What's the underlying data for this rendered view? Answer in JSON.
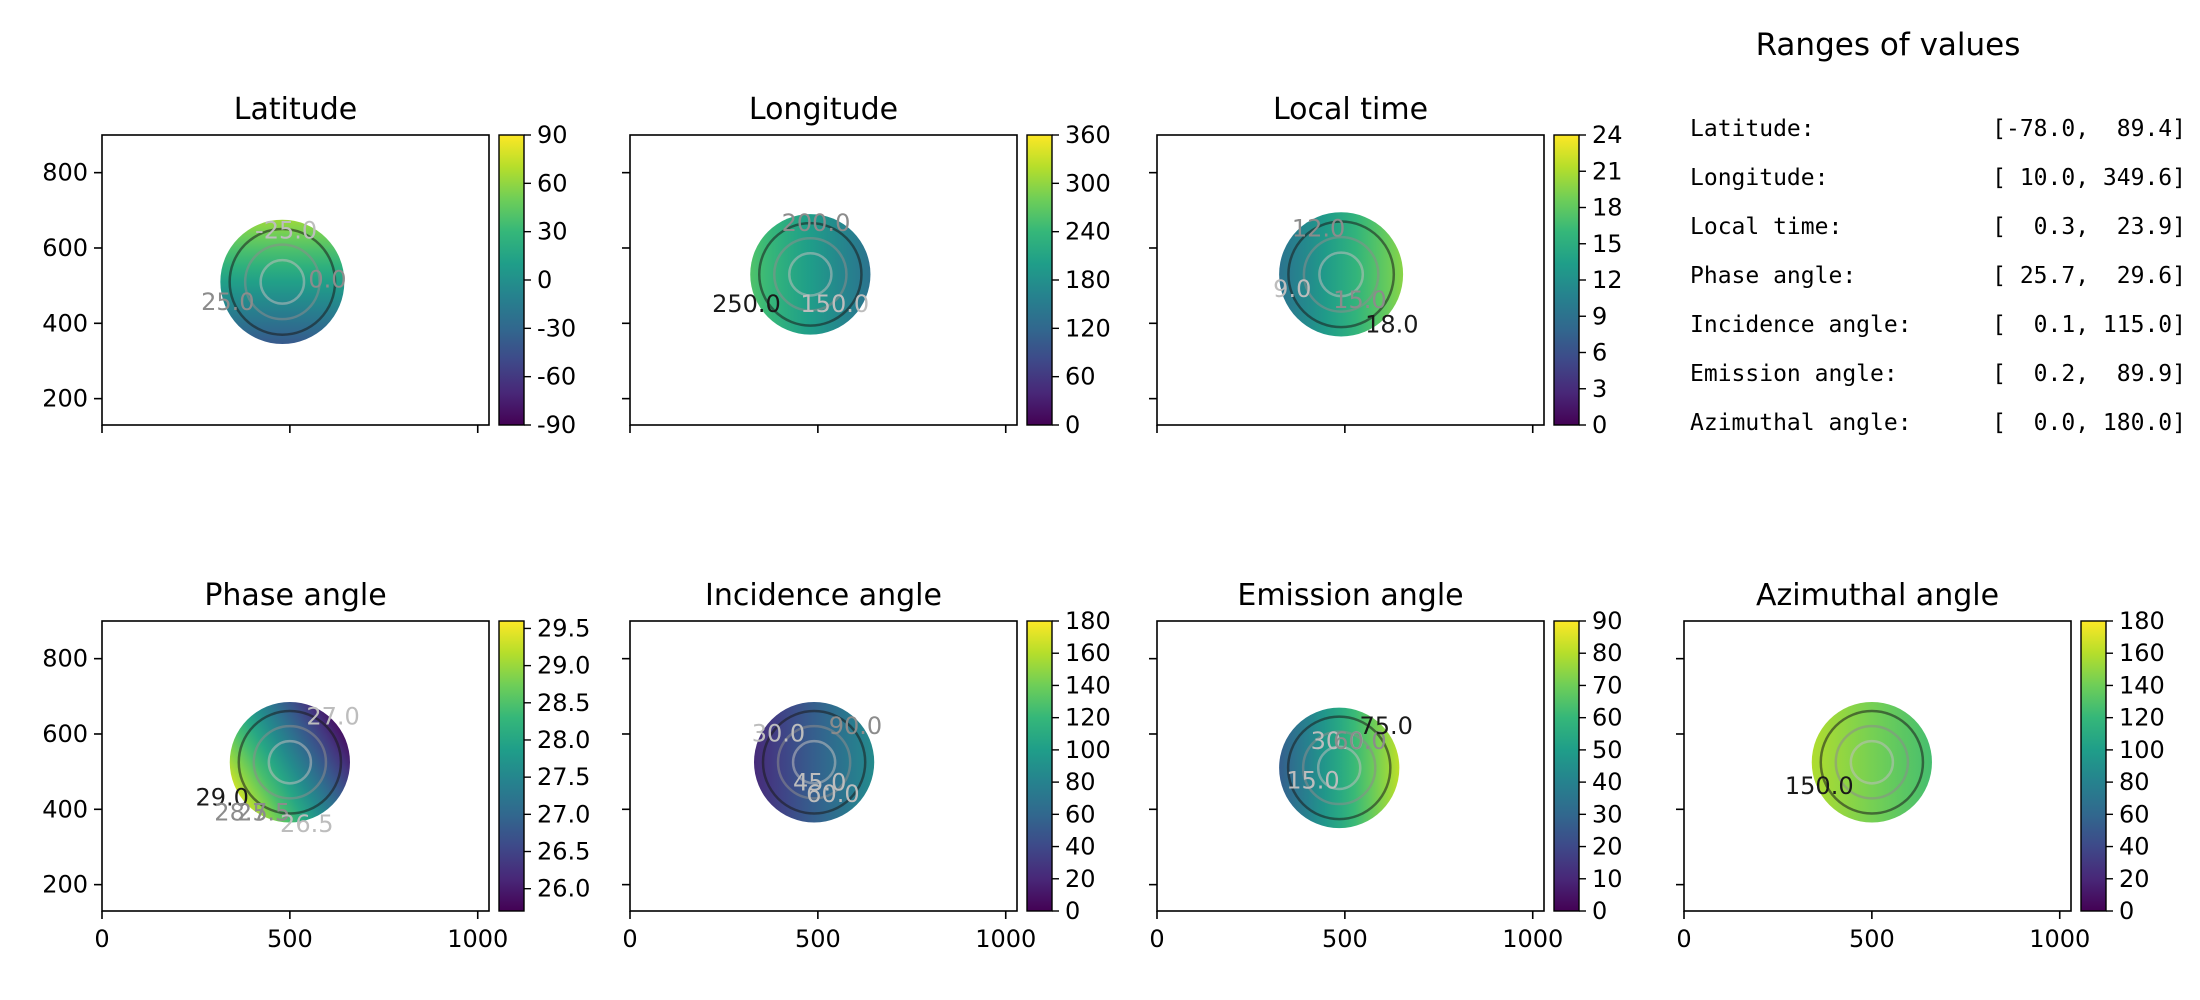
{
  "figure": {
    "ranges_title": "Ranges of values",
    "ranges": [
      {
        "label": "Latitude:",
        "value": "[-78.0,  89.4]"
      },
      {
        "label": "Longitude:",
        "value": "[ 10.0, 349.6]"
      },
      {
        "label": "Local time:",
        "value": "[  0.3,  23.9]"
      },
      {
        "label": "Phase angle:",
        "value": "[ 25.7,  29.6]"
      },
      {
        "label": "Incidence angle:",
        "value": "[  0.1, 115.0]"
      },
      {
        "label": "Emission angle:",
        "value": "[  0.2,  89.9]"
      },
      {
        "label": "Azimuthal angle:",
        "value": "[  0.0, 180.0]"
      }
    ]
  },
  "colors": {
    "viridis": [
      "#440154",
      "#482878",
      "#3e4989",
      "#31688e",
      "#26828e",
      "#1f9e89",
      "#35b779",
      "#6ece58",
      "#b5de2b",
      "#fde725"
    ],
    "contour_light": "#bdbdbd",
    "contour_mid": "#8c8c8c",
    "contour_dark": "#1a1a1a"
  },
  "chart_data": [
    {
      "type": "heatmap",
      "title": "Latitude",
      "xlim": [
        0,
        1030
      ],
      "ylim": [
        130,
        900
      ],
      "xticks": [
        0,
        500,
        1000
      ],
      "yticks": [
        200,
        400,
        600,
        800
      ],
      "show_xtick_labels": false,
      "show_ytick_labels": true,
      "disk": {
        "cx": 480,
        "cy": 510,
        "r": 165
      },
      "cbar": {
        "min": -90,
        "max": 90,
        "ticks": [
          -90,
          -60,
          -30,
          0,
          30,
          60,
          90
        ]
      },
      "gradient": {
        "angle": 90,
        "from": 0.28,
        "to": 0.85
      },
      "contour_labels": [
        {
          "text": "-25.0",
          "x": 490,
          "y": 625,
          "tone": "light"
        },
        {
          "text": "0.0",
          "x": 600,
          "y": 495,
          "tone": "mid"
        },
        {
          "text": "25.0",
          "x": 335,
          "y": 435,
          "tone": "mid"
        }
      ]
    },
    {
      "type": "heatmap",
      "title": "Longitude",
      "xlim": [
        0,
        1030
      ],
      "ylim": [
        130,
        900
      ],
      "xticks": [
        0,
        500,
        1000
      ],
      "yticks": [
        200,
        400,
        600,
        800
      ],
      "show_xtick_labels": false,
      "show_ytick_labels": false,
      "disk": {
        "cx": 480,
        "cy": 530,
        "r": 160
      },
      "cbar": {
        "min": 0,
        "max": 360,
        "ticks": [
          0,
          60,
          120,
          180,
          240,
          300,
          360
        ]
      },
      "gradient": {
        "angle": 0,
        "from": 0.72,
        "to": 0.38
      },
      "contour_labels": [
        {
          "text": "200.0",
          "x": 495,
          "y": 645,
          "tone": "mid"
        },
        {
          "text": "150.0",
          "x": 545,
          "y": 430,
          "tone": "light"
        },
        {
          "text": "250.0",
          "x": 310,
          "y": 430,
          "tone": "dark"
        }
      ]
    },
    {
      "type": "heatmap",
      "title": "Local time",
      "xlim": [
        0,
        1030
      ],
      "ylim": [
        130,
        900
      ],
      "xticks": [
        0,
        500,
        1000
      ],
      "yticks": [
        200,
        400,
        600,
        800
      ],
      "show_xtick_labels": false,
      "show_ytick_labels": false,
      "disk": {
        "cx": 490,
        "cy": 530,
        "r": 165
      },
      "cbar": {
        "min": 0,
        "max": 24,
        "ticks": [
          0,
          3,
          6,
          9,
          12,
          15,
          18,
          21,
          24
        ]
      },
      "gradient": {
        "angle": 0,
        "from": 0.38,
        "to": 0.82
      },
      "contour_labels": [
        {
          "text": "12.0",
          "x": 430,
          "y": 630,
          "tone": "mid"
        },
        {
          "text": "15.0",
          "x": 540,
          "y": 440,
          "tone": "mid"
        },
        {
          "text": "18.0",
          "x": 625,
          "y": 375,
          "tone": "dark"
        },
        {
          "text": "9.0",
          "x": 360,
          "y": 470,
          "tone": "light"
        }
      ]
    },
    {
      "type": "heatmap",
      "title": "Phase angle",
      "xlim": [
        0,
        1030
      ],
      "ylim": [
        130,
        900
      ],
      "xticks": [
        0,
        500,
        1000
      ],
      "yticks": [
        200,
        400,
        600,
        800
      ],
      "show_xtick_labels": true,
      "show_ytick_labels": true,
      "disk": {
        "cx": 500,
        "cy": 525,
        "r": 160
      },
      "cbar": {
        "min": 25.7,
        "max": 29.6,
        "ticks": [
          26.0,
          26.5,
          27.0,
          27.5,
          28.0,
          28.5,
          29.0,
          29.5
        ]
      },
      "gradient": {
        "angle": 30,
        "from": 0.92,
        "to": 0.05
      },
      "contour_labels": [
        {
          "text": "27.0",
          "x": 615,
          "y": 625,
          "tone": "light"
        },
        {
          "text": "29.0",
          "x": 320,
          "y": 410,
          "tone": "dark"
        },
        {
          "text": "28.5",
          "x": 370,
          "y": 370,
          "tone": "mid"
        },
        {
          "text": "27.5",
          "x": 430,
          "y": 370,
          "tone": "mid"
        },
        {
          "text": "26.5",
          "x": 545,
          "y": 340,
          "tone": "light"
        }
      ]
    },
    {
      "type": "heatmap",
      "title": "Incidence angle",
      "xlim": [
        0,
        1030
      ],
      "ylim": [
        130,
        900
      ],
      "xticks": [
        0,
        500,
        1000
      ],
      "yticks": [
        200,
        400,
        600,
        800
      ],
      "show_xtick_labels": true,
      "show_ytick_labels": false,
      "disk": {
        "cx": 490,
        "cy": 525,
        "r": 160
      },
      "cbar": {
        "min": 0,
        "max": 180,
        "ticks": [
          0,
          20,
          40,
          60,
          80,
          100,
          120,
          140,
          160,
          180
        ]
      },
      "gradient": {
        "angle": 0,
        "from": 0.12,
        "to": 0.48
      },
      "contour_labels": [
        {
          "text": "30.0",
          "x": 395,
          "y": 580,
          "tone": "light"
        },
        {
          "text": "45.0",
          "x": 505,
          "y": 450,
          "tone": "light"
        },
        {
          "text": "60.0",
          "x": 540,
          "y": 420,
          "tone": "light"
        },
        {
          "text": "90.0",
          "x": 600,
          "y": 600,
          "tone": "mid"
        }
      ]
    },
    {
      "type": "heatmap",
      "title": "Emission angle",
      "xlim": [
        0,
        1030
      ],
      "ylim": [
        130,
        900
      ],
      "xticks": [
        0,
        500,
        1000
      ],
      "yticks": [
        200,
        400,
        600,
        800
      ],
      "show_xtick_labels": true,
      "show_ytick_labels": false,
      "disk": {
        "cx": 485,
        "cy": 510,
        "r": 160
      },
      "cbar": {
        "min": 0,
        "max": 90,
        "ticks": [
          0,
          10,
          20,
          30,
          40,
          50,
          60,
          70,
          80,
          90
        ]
      },
      "gradient": {
        "angle": 0,
        "from": 0.3,
        "to": 0.9
      },
      "contour_labels": [
        {
          "text": "15.0",
          "x": 415,
          "y": 455,
          "tone": "light"
        },
        {
          "text": "30.0",
          "x": 480,
          "y": 560,
          "tone": "light"
        },
        {
          "text": "60.0",
          "x": 540,
          "y": 560,
          "tone": "mid"
        },
        {
          "text": "75.0",
          "x": 610,
          "y": 600,
          "tone": "dark"
        }
      ]
    },
    {
      "type": "heatmap",
      "title": "Azimuthal angle",
      "xlim": [
        0,
        1030
      ],
      "ylim": [
        130,
        900
      ],
      "xticks": [
        0,
        500,
        1000
      ],
      "yticks": [
        200,
        400,
        600,
        800
      ],
      "show_xtick_labels": true,
      "show_ytick_labels": false,
      "disk": {
        "cx": 500,
        "cy": 525,
        "r": 160
      },
      "cbar": {
        "min": 0,
        "max": 180,
        "ticks": [
          0,
          20,
          40,
          60,
          80,
          100,
          120,
          140,
          160,
          180
        ]
      },
      "gradient": {
        "angle": 0,
        "from": 0.88,
        "to": 0.7
      },
      "contour_labels": [
        {
          "text": "150.0",
          "x": 360,
          "y": 440,
          "tone": "dark"
        }
      ]
    }
  ]
}
